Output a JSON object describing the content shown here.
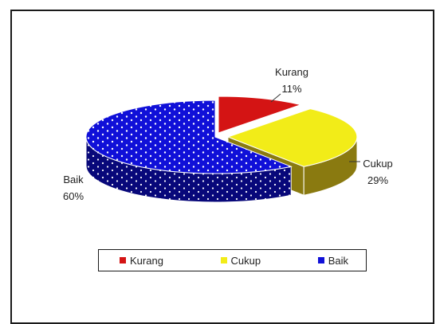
{
  "chart_data": {
    "type": "pie",
    "style": "3d-exploded",
    "categories": [
      "Kurang",
      "Cukup",
      "Baik"
    ],
    "values": [
      11,
      29,
      60
    ],
    "value_labels": [
      "11%",
      "29%",
      "60%"
    ],
    "colors": [
      "#d41414",
      "#f2ec18",
      "#1010d8"
    ],
    "side_colors": [
      "#8a0a0a",
      "#8a7a10",
      "#08087a"
    ],
    "legend_position": "bottom",
    "title": ""
  }
}
